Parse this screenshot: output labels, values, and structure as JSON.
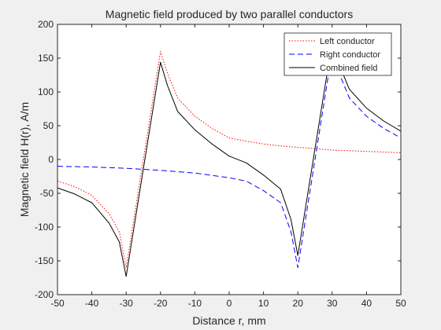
{
  "chart_data": {
    "type": "line",
    "title": "Magnetic field produced by two parallel conductors",
    "xlabel": "Distance r, mm",
    "ylabel": "Magnetic field H(r), A/m",
    "xlim": [
      -50,
      50
    ],
    "ylim": [
      -200,
      200
    ],
    "xticks": [
      -50,
      -40,
      -30,
      -20,
      -10,
      0,
      10,
      20,
      30,
      40,
      50
    ],
    "yticks": [
      -200,
      -150,
      -100,
      -50,
      0,
      50,
      100,
      150,
      200
    ],
    "grid": false,
    "legend_position": "top-right",
    "series": [
      {
        "name": "Left conductor",
        "color": "#ff0000",
        "style": "dotted",
        "x": [
          -50,
          -45,
          -40,
          -35,
          -32,
          -30,
          -25,
          -20,
          -18,
          -15,
          -10,
          -5,
          0,
          5,
          10,
          15,
          20,
          25,
          30,
          35,
          40,
          45,
          50
        ],
        "y": [
          -32,
          -40,
          -53,
          -80,
          -107,
          -160,
          0,
          160,
          128,
          91,
          64,
          46,
          32,
          27,
          23,
          20,
          18,
          16,
          14,
          13,
          12,
          11,
          10
        ]
      },
      {
        "name": "Right conductor",
        "color": "#0000ff",
        "style": "dashed",
        "x": [
          -50,
          -40,
          -30,
          -20,
          -10,
          0,
          5,
          10,
          15,
          18,
          20,
          25,
          30,
          32,
          35,
          40,
          45,
          50
        ],
        "y": [
          -10,
          -11,
          -13,
          -16,
          -20,
          -27,
          -32,
          -46,
          -64,
          -107,
          -160,
          0,
          160,
          128,
          91,
          64,
          46,
          32
        ]
      },
      {
        "name": "Combined field",
        "color": "#000000",
        "style": "solid",
        "x": [
          -50,
          -45,
          -40,
          -35,
          -32,
          -30,
          -25,
          -20,
          -18,
          -15,
          -10,
          -5,
          0,
          5,
          10,
          15,
          18,
          20,
          25,
          30,
          32,
          35,
          40,
          45,
          50
        ],
        "y": [
          -42,
          -51,
          -64,
          -94,
          -122,
          -173,
          -14,
          144,
          110,
          71,
          44,
          23,
          5,
          -5,
          -23,
          -44,
          -89,
          -142,
          16,
          174,
          141,
          104,
          76,
          57,
          42
        ]
      }
    ]
  }
}
